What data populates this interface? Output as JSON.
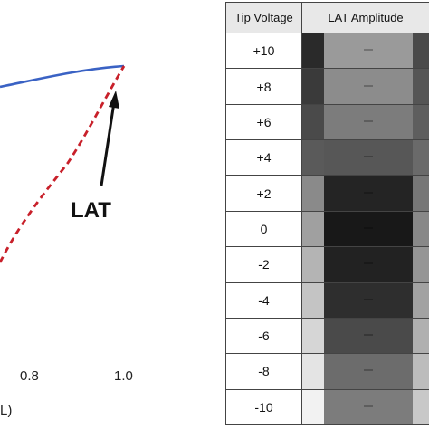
{
  "figure": {
    "plot": {
      "x_ticks": [
        "0.8",
        "1.0"
      ],
      "axis_label_fragment": "L)",
      "annotation": "LAT",
      "colors": {
        "solid_curve": "#3a62c4",
        "dashed_curve": "#c8202a",
        "arrow": "#111111"
      }
    },
    "table": {
      "headers": [
        "Tip Voltage",
        "LAT Amplitude"
      ],
      "rows": [
        {
          "voltage": "+10",
          "shades": {
            "left": "#2a2a2a",
            "mid": "#9a9a9a",
            "right": "#4a4a4a"
          }
        },
        {
          "voltage": "+8",
          "shades": {
            "left": "#3a3a3a",
            "mid": "#8c8c8c",
            "right": "#555555"
          }
        },
        {
          "voltage": "+6",
          "shades": {
            "left": "#4a4a4a",
            "mid": "#7c7c7c",
            "right": "#5e5e5e"
          }
        },
        {
          "voltage": "+4",
          "shades": {
            "left": "#5a5a5a",
            "mid": "#575757",
            "right": "#6a6a6a"
          }
        },
        {
          "voltage": "+2",
          "shades": {
            "left": "#8a8a8a",
            "mid": "#242424",
            "right": "#777777"
          }
        },
        {
          "voltage": "0",
          "shades": {
            "left": "#a0a0a0",
            "mid": "#181818",
            "right": "#888888"
          }
        },
        {
          "voltage": "-2",
          "shades": {
            "left": "#b4b4b4",
            "mid": "#222222",
            "right": "#959595"
          }
        },
        {
          "voltage": "-4",
          "shades": {
            "left": "#c4c4c4",
            "mid": "#2e2e2e",
            "right": "#a2a2a2"
          }
        },
        {
          "voltage": "-6",
          "shades": {
            "left": "#d6d6d6",
            "mid": "#4a4a4a",
            "right": "#b0b0b0"
          }
        },
        {
          "voltage": "-8",
          "shades": {
            "left": "#e4e4e4",
            "mid": "#6c6c6c",
            "right": "#bcbcbc"
          }
        },
        {
          "voltage": "-10",
          "shades": {
            "left": "#f2f2f2",
            "mid": "#7c7c7c",
            "right": "#c8c8c8"
          }
        }
      ]
    }
  }
}
